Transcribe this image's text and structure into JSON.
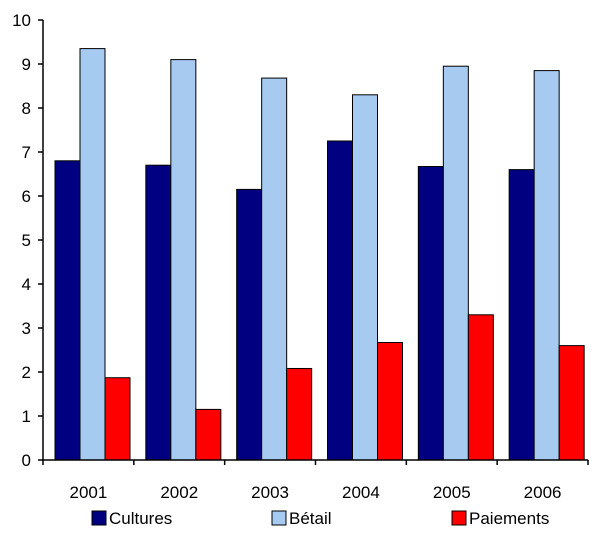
{
  "chart_data": {
    "type": "bar",
    "title": "",
    "xlabel": "",
    "ylabel": "",
    "categories": [
      "2001",
      "2002",
      "2003",
      "2004",
      "2005",
      "2006"
    ],
    "ylim": [
      0,
      10
    ],
    "yticks": [
      "0",
      "1",
      "2",
      "3",
      "4",
      "5",
      "6",
      "7",
      "8",
      "9",
      "10"
    ],
    "grid": false,
    "legend_position": "bottom",
    "series": [
      {
        "name": "Cultures",
        "color": "#000080",
        "values": [
          6.8,
          6.7,
          6.15,
          7.25,
          6.67,
          6.6
        ]
      },
      {
        "name": "Bétail",
        "color": "#a6caf0",
        "values": [
          9.35,
          9.1,
          8.68,
          8.3,
          8.95,
          8.85
        ]
      },
      {
        "name": "Paiements",
        "color": "#ff0000",
        "values": [
          1.87,
          1.15,
          2.08,
          2.67,
          3.3,
          2.6
        ]
      }
    ]
  }
}
